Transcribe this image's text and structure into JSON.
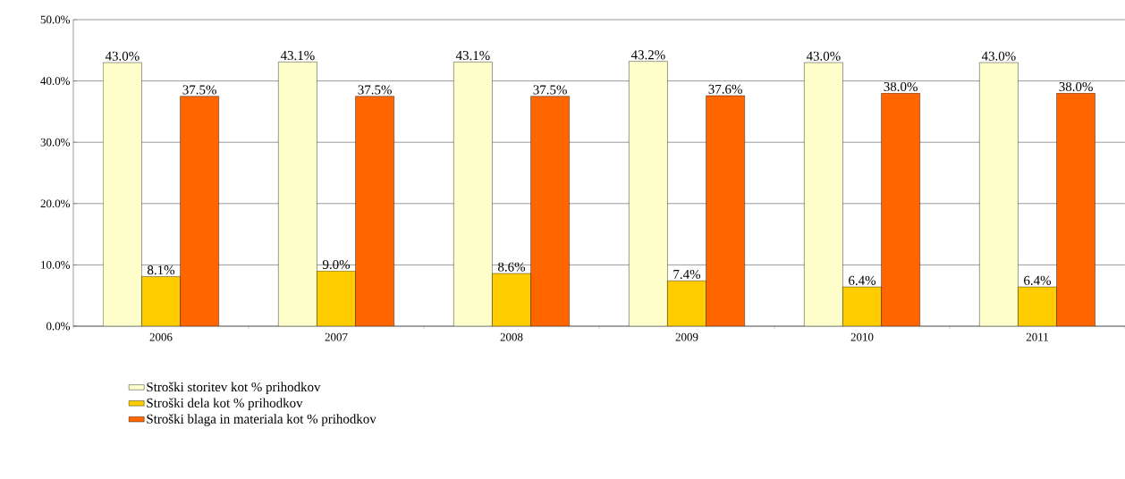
{
  "chart_data": {
    "type": "bar",
    "categories": [
      "2006",
      "2007",
      "2008",
      "2009",
      "2010",
      "2011"
    ],
    "series": [
      {
        "name": "Stroški storitev kot % prihodkov",
        "color": "#ffffcc",
        "values": [
          43.0,
          43.1,
          43.1,
          43.2,
          43.0,
          43.0
        ],
        "value_labels": [
          "43.0%",
          "43.1%",
          "43.1%",
          "43.2%",
          "43.0%",
          "43.0%"
        ]
      },
      {
        "name": "Stroški dela kot % prihodkov",
        "color": "#ffcc00",
        "values": [
          8.1,
          9.0,
          8.6,
          7.4,
          6.4,
          6.4
        ],
        "value_labels": [
          "8.1%",
          "9.0%",
          "8.6%",
          "7.4%",
          "6.4%",
          "6.4%"
        ]
      },
      {
        "name": "Stroški blaga in materiala kot % prihodkov",
        "color": "#ff6600",
        "values": [
          37.5,
          37.5,
          37.5,
          37.6,
          38.0,
          38.0
        ],
        "value_labels": [
          "37.5%",
          "37.5%",
          "37.5%",
          "37.6%",
          "38.0%",
          "38.0%"
        ]
      }
    ],
    "ylim": [
      0,
      50
    ],
    "yticks": [
      {
        "value": 0,
        "label": "0.0%"
      },
      {
        "value": 10,
        "label": "10.0%"
      },
      {
        "value": 20,
        "label": "20.0%"
      },
      {
        "value": 30,
        "label": "30.0%"
      },
      {
        "value": 40,
        "label": "40.0%"
      },
      {
        "value": 50,
        "label": "50.0%"
      }
    ],
    "grid": "y",
    "legend": "bottom left"
  }
}
